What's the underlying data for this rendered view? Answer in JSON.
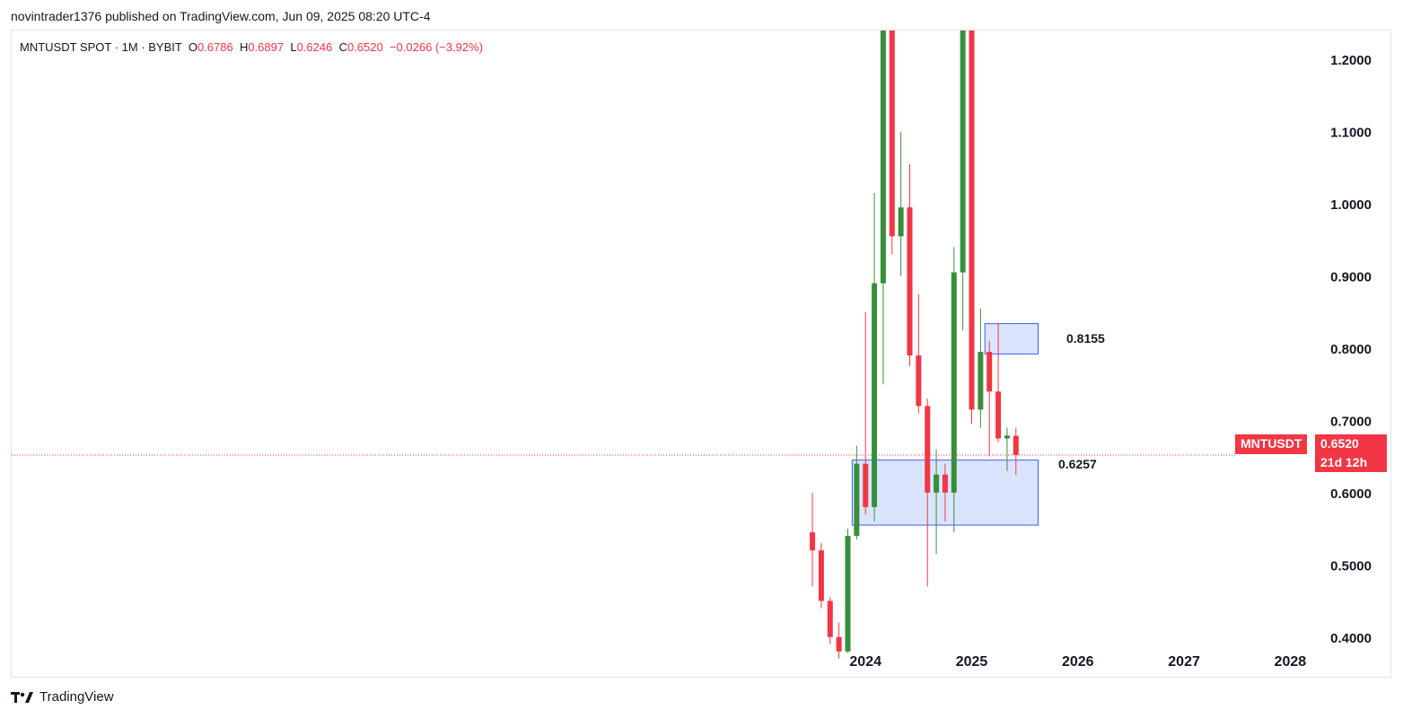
{
  "header": {
    "published_text": "novintrader1376 published on TradingView.com, Jun 09, 2025 08:20 UTC-4"
  },
  "legend": {
    "symbol": "MNTUSDT SPOT · 1M · BYBIT",
    "o_label": "O",
    "o_value": "0.6786",
    "h_label": "H",
    "h_value": "0.6897",
    "l_label": "L",
    "l_value": "0.6246",
    "c_label": "C",
    "c_value": "0.6520",
    "change": "−0.0266 (−3.92%)"
  },
  "current_price": {
    "symbol_tag": "MNTUSDT",
    "price_tag": "0.6520",
    "countdown": "21d 12h"
  },
  "zones": [
    {
      "label": "0.8155",
      "top": 0.834,
      "bottom": 0.792,
      "start": "2025-03",
      "end": "2025-08"
    },
    {
      "label": "0.6257",
      "top": 0.645,
      "bottom": 0.555,
      "start": "2023-12",
      "end": "2025-08"
    }
  ],
  "footer": {
    "brand": "TradingView"
  },
  "colors": {
    "up": "#388e3c",
    "down": "#f23645",
    "zone_fill": "#d6e2fd",
    "zone_stroke": "#3d5afe",
    "grid": "#e0e3eb",
    "text": "#131722",
    "price_line": "#f23645"
  },
  "chart_data": {
    "type": "candlestick",
    "title": "MNTUSDT SPOT · 1M · BYBIT",
    "x_tick_labels": [
      "2024",
      "2025",
      "2026",
      "2027",
      "2028"
    ],
    "y_tick_labels": [
      "1.2000",
      "1.1000",
      "1.0000",
      "0.9000",
      "0.8000",
      "0.7000",
      "0.6000",
      "0.5000",
      "0.4000"
    ],
    "y_ticks": [
      1.2,
      1.1,
      1.0,
      0.9,
      0.8,
      0.7,
      0.6,
      0.5,
      0.4
    ],
    "ylim": [
      0.345,
      1.24
    ],
    "xlim": [
      "2016-01",
      "2028-04"
    ],
    "candles": [
      {
        "date": "2023-07",
        "open": 0.545,
        "high": 0.6,
        "low": 0.47,
        "close": 0.52
      },
      {
        "date": "2023-08",
        "open": 0.52,
        "high": 0.53,
        "low": 0.44,
        "close": 0.45
      },
      {
        "date": "2023-09",
        "open": 0.45,
        "high": 0.455,
        "low": 0.39,
        "close": 0.4
      },
      {
        "date": "2023-10",
        "open": 0.4,
        "high": 0.42,
        "low": 0.37,
        "close": 0.38
      },
      {
        "date": "2023-11",
        "open": 0.38,
        "high": 0.55,
        "low": 0.378,
        "close": 0.54
      },
      {
        "date": "2023-12",
        "open": 0.54,
        "high": 0.665,
        "low": 0.535,
        "close": 0.64
      },
      {
        "date": "2024-01",
        "open": 0.64,
        "high": 0.85,
        "low": 0.57,
        "close": 0.58
      },
      {
        "date": "2024-02",
        "open": 0.58,
        "high": 1.015,
        "low": 0.56,
        "close": 0.89
      },
      {
        "date": "2024-03",
        "open": 0.89,
        "high": 1.3,
        "low": 0.75,
        "close": 1.3
      },
      {
        "date": "2024-04",
        "open": 1.3,
        "high": 1.3,
        "low": 0.93,
        "close": 0.955
      },
      {
        "date": "2024-05",
        "open": 0.955,
        "high": 1.1,
        "low": 0.9,
        "close": 0.995
      },
      {
        "date": "2024-06",
        "open": 0.995,
        "high": 1.055,
        "low": 0.775,
        "close": 0.79
      },
      {
        "date": "2024-07",
        "open": 0.79,
        "high": 0.875,
        "low": 0.71,
        "close": 0.72
      },
      {
        "date": "2024-08",
        "open": 0.72,
        "high": 0.73,
        "low": 0.47,
        "close": 0.6
      },
      {
        "date": "2024-09",
        "open": 0.6,
        "high": 0.66,
        "low": 0.515,
        "close": 0.625
      },
      {
        "date": "2024-10",
        "open": 0.625,
        "high": 0.64,
        "low": 0.56,
        "close": 0.6
      },
      {
        "date": "2024-11",
        "open": 0.6,
        "high": 0.94,
        "low": 0.545,
        "close": 0.905
      },
      {
        "date": "2024-12",
        "open": 0.905,
        "high": 1.3,
        "low": 0.825,
        "close": 1.3
      },
      {
        "date": "2025-01",
        "open": 1.3,
        "high": 1.3,
        "low": 0.695,
        "close": 0.715
      },
      {
        "date": "2025-02",
        "open": 0.715,
        "high": 0.855,
        "low": 0.69,
        "close": 0.795
      },
      {
        "date": "2025-03",
        "open": 0.795,
        "high": 0.81,
        "low": 0.65,
        "close": 0.74
      },
      {
        "date": "2025-04",
        "open": 0.74,
        "high": 0.835,
        "low": 0.67,
        "close": 0.675
      },
      {
        "date": "2025-05",
        "open": 0.675,
        "high": 0.69,
        "low": 0.63,
        "close": 0.679
      },
      {
        "date": "2025-06",
        "open": 0.6786,
        "high": 0.6897,
        "low": 0.6246,
        "close": 0.652
      }
    ],
    "grid": false,
    "legend_position": "top-left"
  }
}
